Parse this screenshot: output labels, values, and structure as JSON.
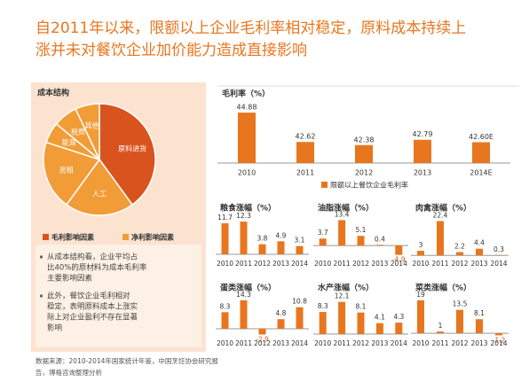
{
  "title": [
    "自2011年以来，限额以上企业毛利率相对稳定，原料成本持续上",
    "涨并未对餐饮企业加价能力造成直接影响"
  ],
  "notes": [
    [
      "从成本结构看，企业平均占",
      "比40%的原材料为成本毛利率",
      "主要影响因素"
    ],
    [
      "此外，餐饮企业毛利相对",
      "稳定，表明原料成本上涨实",
      "际上对企业盈利不存在显著",
      "影响"
    ]
  ],
  "source": [
    "数据来源：2010-2014年国家统计年鉴，中国烹饪协会研究报",
    "告，博格咨询整理分析"
  ],
  "chart_data": [
    {
      "type": "pie",
      "title": "成本结构",
      "categories": [
        "原料进货",
        "人工",
        "房租",
        "能源",
        "税费",
        "其他"
      ],
      "values": [
        40,
        20,
        20,
        6,
        7,
        7
      ],
      "colors": [
        "#d9531e",
        "#f29c38",
        "#f29c38",
        "#f29c38",
        "#f29c38",
        "#f29c38"
      ],
      "legend": [
        {
          "name": "毛利影响因素",
          "color": "#d9531e"
        },
        {
          "name": "净利影响因素",
          "color": "#f29c38"
        }
      ]
    },
    {
      "type": "bar",
      "title": "毛利率（%）",
      "categories": [
        "2010",
        "2011",
        "2012",
        "2013",
        "2014E"
      ],
      "series": [
        {
          "name": "限额以上餐饮企业毛利率",
          "color": "#e8761e",
          "values": [
            44.88,
            42.62,
            42.38,
            42.79,
            42.6
          ],
          "value_labels": [
            "44.88",
            "42.62",
            "42.38",
            "42.79",
            "42.60E"
          ]
        }
      ],
      "ylim": [
        41,
        45.5
      ]
    },
    {
      "type": "bar",
      "title": "粮食涨幅（%）",
      "categories": [
        "2010",
        "2011",
        "2012",
        "2013",
        "2014"
      ],
      "values": [
        11.7,
        12.3,
        3.8,
        4.9,
        3.1
      ],
      "color": "#e8761e",
      "ylim": [
        -1,
        14
      ]
    },
    {
      "type": "bar",
      "title": "油脂涨幅（%）",
      "categories": [
        "2010",
        "2011",
        "2012",
        "2013",
        "2014"
      ],
      "values": [
        3.7,
        13.4,
        5.1,
        0.4,
        -4.9
      ],
      "color": "#e8761e",
      "ylim": [
        -6,
        15
      ]
    },
    {
      "type": "bar",
      "title": "肉禽涨幅（%）",
      "categories": [
        "2010",
        "2011",
        "2012",
        "2013",
        "2014"
      ],
      "values": [
        3,
        22.4,
        2.2,
        4.4,
        0.3
      ],
      "color": "#e8761e",
      "ylim": [
        -1,
        25
      ]
    },
    {
      "type": "bar",
      "title": "蛋类涨幅（%）",
      "categories": [
        "2010",
        "2011",
        "2012",
        "2013",
        "2014"
      ],
      "values": [
        8.3,
        14.3,
        -2.9,
        4.8,
        10.8
      ],
      "color": "#e8761e",
      "ylim": [
        -4,
        16
      ]
    },
    {
      "type": "bar",
      "title": "水产涨幅（%）",
      "categories": [
        "2010",
        "2011",
        "2012",
        "2013",
        "2014"
      ],
      "values": [
        8.3,
        12.1,
        8.1,
        4.1,
        4.3
      ],
      "color": "#e8761e",
      "ylim": [
        -1,
        14
      ]
    },
    {
      "type": "bar",
      "title": "菜类涨幅（%）",
      "categories": [
        "2010",
        "2011",
        "2012",
        "2013",
        "2014"
      ],
      "values": [
        19,
        1,
        13.5,
        8.1,
        -1.2
      ],
      "color": "#e8761e",
      "ylim": [
        -2,
        21
      ]
    }
  ]
}
